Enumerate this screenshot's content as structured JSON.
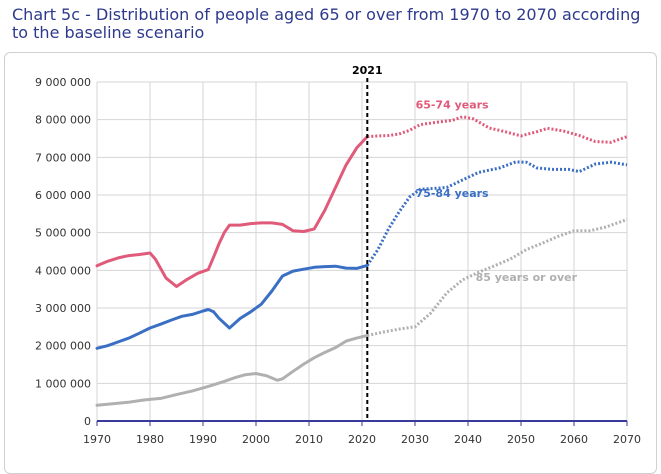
{
  "header": {
    "title": "Chart 5c - Distribution of people aged 65 or over from 1970 to 2070 according to the baseline scenario"
  },
  "chart_data": {
    "type": "line",
    "title": "Chart 5c - Distribution of people aged 65 or over from 1970 to 2070 according to the baseline scenario",
    "xlabel": "",
    "ylabel": "",
    "xlim": [
      1970,
      2070
    ],
    "ylim": [
      0,
      9000000
    ],
    "x_ticks": [
      1970,
      1980,
      1990,
      2000,
      2010,
      2020,
      2030,
      2040,
      2050,
      2060,
      2070
    ],
    "y_ticks": [
      0,
      1000000,
      2000000,
      3000000,
      4000000,
      5000000,
      6000000,
      7000000,
      8000000,
      9000000
    ],
    "y_tick_labels": [
      "0",
      "1 000 000",
      "2 000 000",
      "3 000 000",
      "4 000 000",
      "5 000 000",
      "6 000 000",
      "7 000 000",
      "8 000 000",
      "9 000 000"
    ],
    "grid": true,
    "marker": {
      "x": 2021,
      "label": "2021"
    },
    "projection_start": 2021,
    "series": [
      {
        "name": "65-74 years",
        "color": "#e05a7a",
        "points": [
          [
            1970,
            4120000
          ],
          [
            1972,
            4240000
          ],
          [
            1974,
            4330000
          ],
          [
            1976,
            4390000
          ],
          [
            1978,
            4420000
          ],
          [
            1980,
            4460000
          ],
          [
            1981,
            4300000
          ],
          [
            1982,
            4050000
          ],
          [
            1983,
            3800000
          ],
          [
            1985,
            3570000
          ],
          [
            1987,
            3760000
          ],
          [
            1989,
            3920000
          ],
          [
            1991,
            4020000
          ],
          [
            1992,
            4350000
          ],
          [
            1993,
            4700000
          ],
          [
            1994,
            5000000
          ],
          [
            1995,
            5200000
          ],
          [
            1997,
            5200000
          ],
          [
            1999,
            5240000
          ],
          [
            2001,
            5260000
          ],
          [
            2003,
            5260000
          ],
          [
            2005,
            5220000
          ],
          [
            2007,
            5050000
          ],
          [
            2009,
            5030000
          ],
          [
            2011,
            5100000
          ],
          [
            2013,
            5600000
          ],
          [
            2015,
            6200000
          ],
          [
            2017,
            6800000
          ],
          [
            2019,
            7250000
          ],
          [
            2021,
            7550000
          ],
          [
            2023,
            7570000
          ],
          [
            2025,
            7580000
          ],
          [
            2027,
            7620000
          ],
          [
            2029,
            7720000
          ],
          [
            2031,
            7870000
          ],
          [
            2034,
            7930000
          ],
          [
            2037,
            7980000
          ],
          [
            2039,
            8080000
          ],
          [
            2041,
            8020000
          ],
          [
            2044,
            7780000
          ],
          [
            2047,
            7680000
          ],
          [
            2050,
            7570000
          ],
          [
            2053,
            7680000
          ],
          [
            2055,
            7770000
          ],
          [
            2058,
            7700000
          ],
          [
            2061,
            7580000
          ],
          [
            2064,
            7420000
          ],
          [
            2067,
            7400000
          ],
          [
            2070,
            7550000
          ]
        ],
        "label_at": [
          2037,
          8300000
        ]
      },
      {
        "name": "75-84 years",
        "color": "#3a6fc4",
        "points": [
          [
            1970,
            1930000
          ],
          [
            1972,
            2000000
          ],
          [
            1974,
            2100000
          ],
          [
            1976,
            2200000
          ],
          [
            1978,
            2330000
          ],
          [
            1980,
            2470000
          ],
          [
            1982,
            2570000
          ],
          [
            1984,
            2680000
          ],
          [
            1986,
            2780000
          ],
          [
            1988,
            2830000
          ],
          [
            1990,
            2920000
          ],
          [
            1991,
            2960000
          ],
          [
            1992,
            2900000
          ],
          [
            1993,
            2730000
          ],
          [
            1995,
            2470000
          ],
          [
            1997,
            2720000
          ],
          [
            1999,
            2900000
          ],
          [
            2001,
            3100000
          ],
          [
            2003,
            3450000
          ],
          [
            2005,
            3850000
          ],
          [
            2007,
            3980000
          ],
          [
            2009,
            4030000
          ],
          [
            2011,
            4080000
          ],
          [
            2013,
            4100000
          ],
          [
            2015,
            4110000
          ],
          [
            2017,
            4060000
          ],
          [
            2019,
            4050000
          ],
          [
            2021,
            4130000
          ],
          [
            2023,
            4550000
          ],
          [
            2025,
            5100000
          ],
          [
            2027,
            5550000
          ],
          [
            2029,
            5950000
          ],
          [
            2031,
            6150000
          ],
          [
            2033,
            6170000
          ],
          [
            2036,
            6200000
          ],
          [
            2039,
            6400000
          ],
          [
            2042,
            6600000
          ],
          [
            2046,
            6720000
          ],
          [
            2049,
            6880000
          ],
          [
            2051,
            6870000
          ],
          [
            2053,
            6720000
          ],
          [
            2056,
            6680000
          ],
          [
            2059,
            6680000
          ],
          [
            2061,
            6620000
          ],
          [
            2064,
            6820000
          ],
          [
            2067,
            6870000
          ],
          [
            2070,
            6800000
          ]
        ],
        "label_at": [
          2037,
          5950000
        ]
      },
      {
        "name": "85 years or over",
        "color": "#b0b0b0",
        "points": [
          [
            1970,
            420000
          ],
          [
            1973,
            460000
          ],
          [
            1976,
            500000
          ],
          [
            1979,
            560000
          ],
          [
            1982,
            600000
          ],
          [
            1985,
            700000
          ],
          [
            1988,
            800000
          ],
          [
            1990,
            880000
          ],
          [
            1992,
            960000
          ],
          [
            1994,
            1050000
          ],
          [
            1996,
            1150000
          ],
          [
            1998,
            1230000
          ],
          [
            2000,
            1260000
          ],
          [
            2002,
            1200000
          ],
          [
            2004,
            1080000
          ],
          [
            2005,
            1120000
          ],
          [
            2007,
            1320000
          ],
          [
            2009,
            1510000
          ],
          [
            2011,
            1680000
          ],
          [
            2013,
            1820000
          ],
          [
            2015,
            1950000
          ],
          [
            2017,
            2120000
          ],
          [
            2019,
            2200000
          ],
          [
            2021,
            2270000
          ],
          [
            2024,
            2360000
          ],
          [
            2027,
            2440000
          ],
          [
            2030,
            2500000
          ],
          [
            2033,
            2870000
          ],
          [
            2036,
            3400000
          ],
          [
            2039,
            3750000
          ],
          [
            2042,
            3950000
          ],
          [
            2045,
            4120000
          ],
          [
            2048,
            4300000
          ],
          [
            2051,
            4550000
          ],
          [
            2054,
            4720000
          ],
          [
            2057,
            4900000
          ],
          [
            2060,
            5050000
          ],
          [
            2063,
            5050000
          ],
          [
            2066,
            5150000
          ],
          [
            2070,
            5350000
          ]
        ],
        "label_at": [
          2051,
          3720000
        ]
      }
    ]
  }
}
